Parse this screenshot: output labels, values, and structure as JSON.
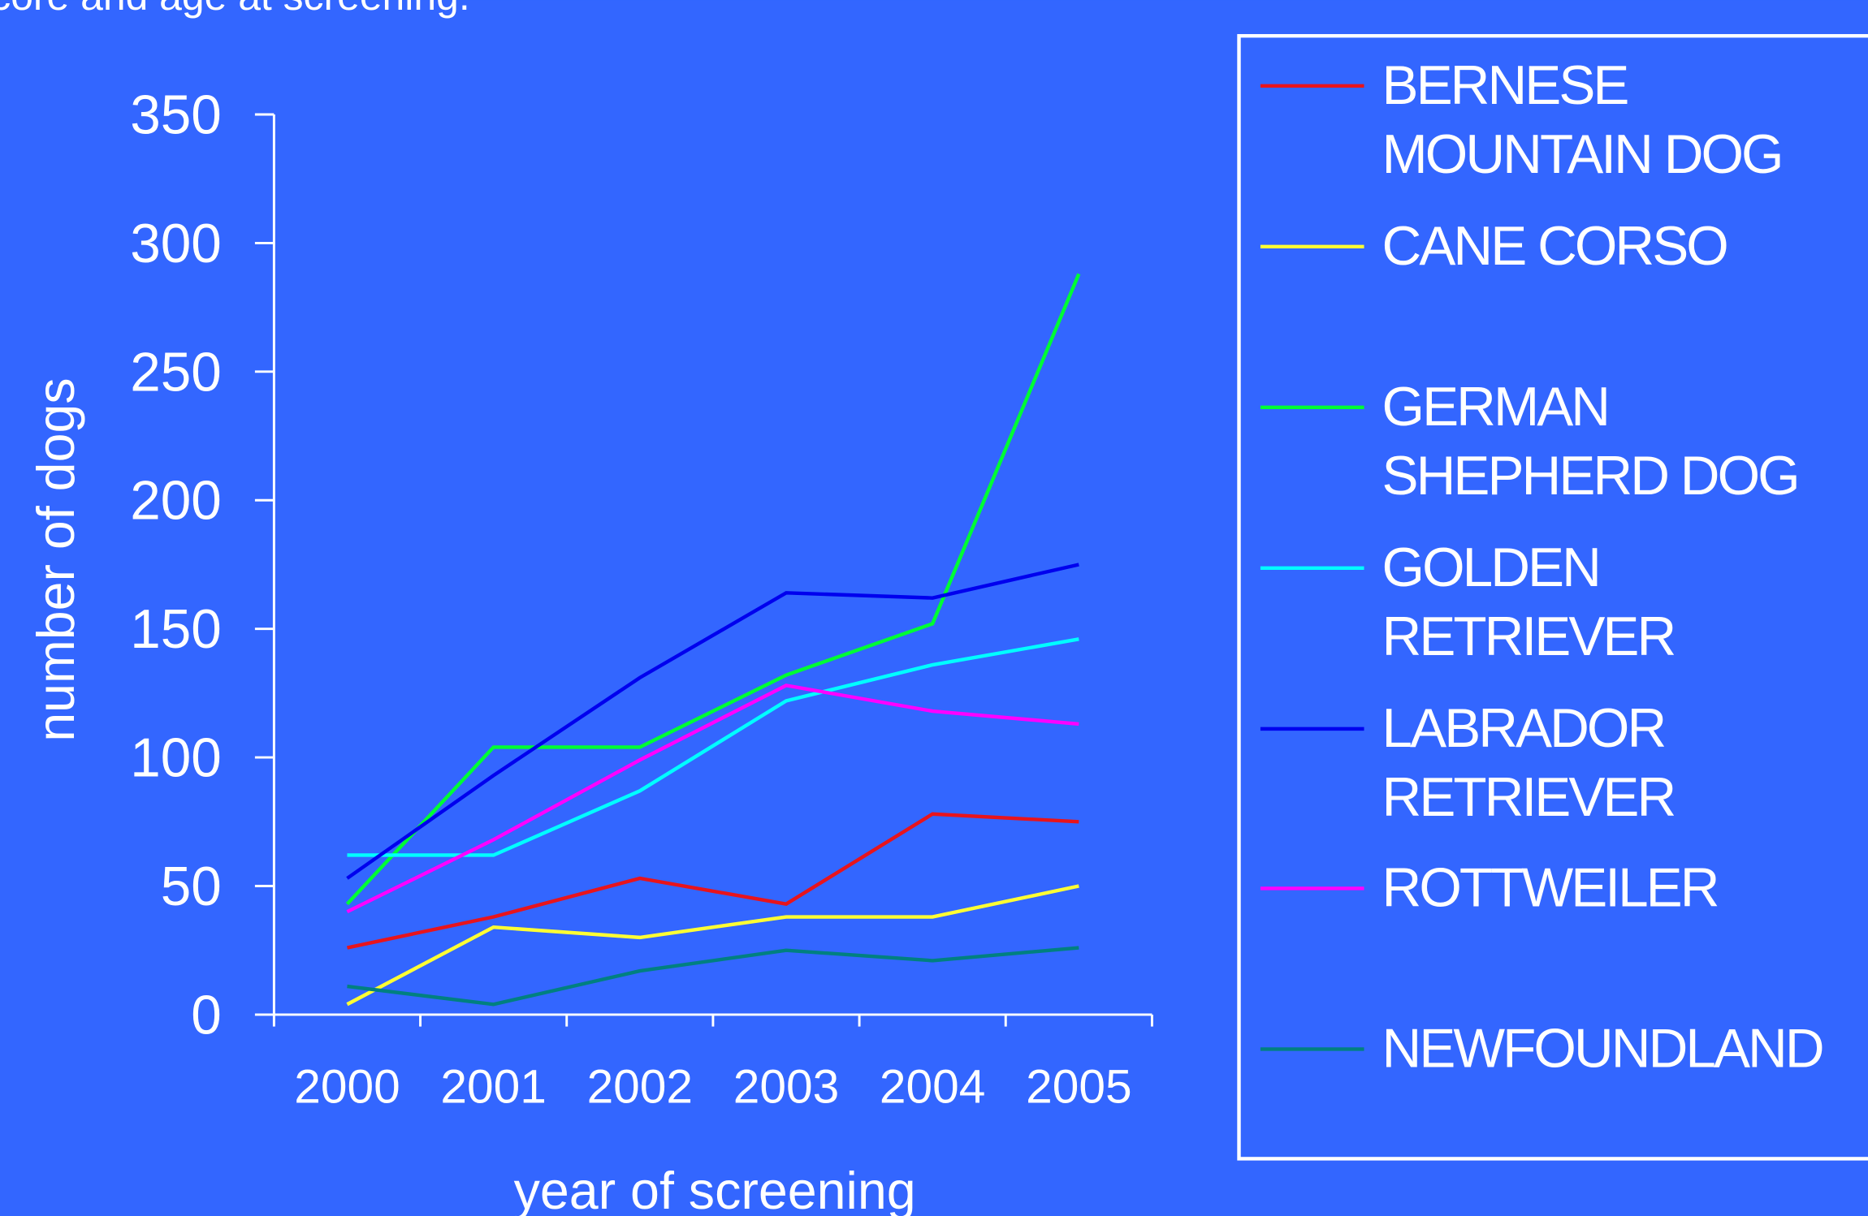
{
  "chart_data": {
    "type": "line",
    "caption": "core and age at screening.",
    "xlabel": "year of screening",
    "ylabel": "number of dogs",
    "categories": [
      "2000",
      "2001",
      "2002",
      "2003",
      "2004",
      "2005"
    ],
    "ylim": [
      0,
      350
    ],
    "yticks": [
      0,
      50,
      100,
      150,
      200,
      250,
      300,
      350
    ],
    "grid": false,
    "legend": "right",
    "series": [
      {
        "name": "BERNESE\nMOUNTAIN DOG",
        "color": "#e8141c",
        "values": [
          26,
          38,
          53,
          43,
          78,
          75
        ]
      },
      {
        "name": "CANE CORSO",
        "color": "#ffff33",
        "values": [
          4,
          34,
          30,
          38,
          38,
          50
        ]
      },
      {
        "name": "GERMAN\nSHEPHERD DOG",
        "color": "#00ff33",
        "values": [
          43,
          104,
          104,
          132,
          152,
          288
        ]
      },
      {
        "name": "GOLDEN\nRETRIEVER",
        "color": "#00ffff",
        "values": [
          62,
          62,
          87,
          122,
          136,
          146
        ]
      },
      {
        "name": "LABRADOR\nRETRIEVER",
        "color": "#0000ee",
        "values": [
          53,
          93,
          131,
          164,
          162,
          175
        ]
      },
      {
        "name": "ROTTWEILER",
        "color": "#ff00ff",
        "values": [
          40,
          68,
          99,
          128,
          118,
          113
        ]
      },
      {
        "name": "NEWFOUNDLAND",
        "color": "#008080",
        "values": [
          11,
          4,
          17,
          25,
          21,
          26
        ]
      }
    ]
  }
}
